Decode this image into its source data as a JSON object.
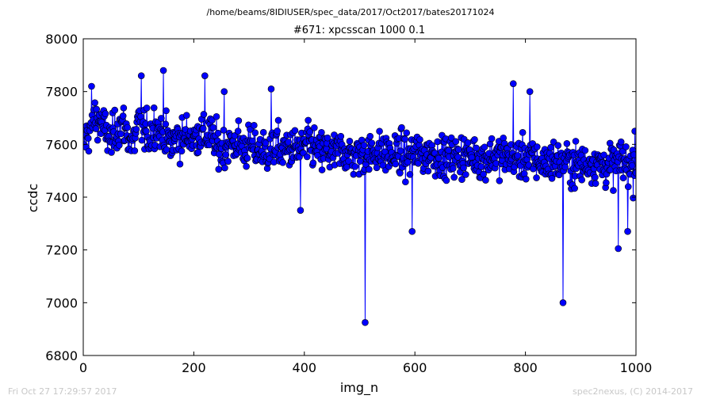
{
  "header": {
    "path": "/home/beams/8IDIUSER/spec_data/2017/Oct2017/bates20171024"
  },
  "footer": {
    "timestamp": "Fri Oct 27 17:29:57 2017",
    "credit": "spec2nexus, (C) 2014-2017"
  },
  "colors": {
    "series": "#0000ff",
    "marker": "#0000ff",
    "background": "#ffffff",
    "footer_text": "#c8c8c8"
  },
  "chart_data": {
    "type": "line",
    "title": "#671: xpcsscan 1000 0.1",
    "xlabel": "img_n",
    "ylabel": "ccdc",
    "xlim": [
      0,
      1000
    ],
    "ylim": [
      6800,
      8000
    ],
    "xticks": [
      0,
      200,
      400,
      600,
      800,
      1000
    ],
    "yticks": [
      6800,
      7000,
      7200,
      7400,
      7600,
      7800,
      8000
    ],
    "xtick_labels": [
      "0",
      "200",
      "400",
      "600",
      "800",
      "1000"
    ],
    "ytick_labels": [
      "6800",
      "7000",
      "7200",
      "7400",
      "7600",
      "7800",
      "8000"
    ],
    "grid": false,
    "legend": "none",
    "marker": "circle",
    "n_points_approx": 1000,
    "series": [
      {
        "values_sampled_every_10": [
          7600,
          7650,
          7700,
          7690,
          7650,
          7610,
          7660,
          7680,
          7640,
          7600,
          7680,
          7650,
          7630,
          7680,
          7640,
          7620,
          7600,
          7630,
          7620,
          7640,
          7620,
          7650,
          7630,
          7640,
          7600,
          7580,
          7600,
          7600,
          7610,
          7580,
          7600,
          7580,
          7580,
          7570,
          7580,
          7600,
          7570,
          7590,
          7580,
          7580,
          7590,
          7600,
          7580,
          7570,
          7580,
          7560,
          7570,
          7580,
          7560,
          7560,
          7560,
          7570,
          7560,
          7580,
          7560,
          7570,
          7550,
          7570,
          7560,
          7550,
          7570,
          7560,
          7560,
          7570,
          7560,
          7550,
          7540,
          7560,
          7550,
          7560,
          7550,
          7560,
          7540,
          7550,
          7560,
          7550,
          7560,
          7550,
          7560,
          7540,
          7550,
          7540,
          7540,
          7530,
          7530,
          7540,
          7530,
          7540,
          7530,
          7520,
          7530,
          7520,
          7540,
          7530,
          7520,
          7520,
          7520,
          7540,
          7530,
          7520
        ],
        "notable_points": [
          {
            "x": 15,
            "y": 7820
          },
          {
            "x": 105,
            "y": 7860
          },
          {
            "x": 145,
            "y": 7880
          },
          {
            "x": 220,
            "y": 7860
          },
          {
            "x": 255,
            "y": 7800
          },
          {
            "x": 340,
            "y": 7810
          },
          {
            "x": 393,
            "y": 7350
          },
          {
            "x": 510,
            "y": 6925
          },
          {
            "x": 595,
            "y": 7270
          },
          {
            "x": 778,
            "y": 7830
          },
          {
            "x": 808,
            "y": 7800
          },
          {
            "x": 868,
            "y": 7000
          },
          {
            "x": 968,
            "y": 7205
          },
          {
            "x": 985,
            "y": 7270
          },
          {
            "x": 998,
            "y": 7650
          }
        ],
        "range": {
          "min": 6925,
          "max": 7880,
          "typical_low": 7420,
          "typical_high": 7720
        }
      }
    ]
  }
}
